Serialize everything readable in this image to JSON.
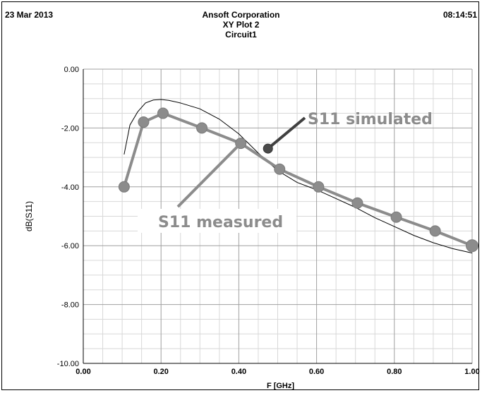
{
  "header": {
    "date": "23 Mar 2013",
    "company": "Ansoft Corporation",
    "plot_name": "XY Plot 2",
    "circuit": "Circuit1",
    "time": "08:14:51"
  },
  "chart_data": {
    "type": "line",
    "title": "XY Plot 2",
    "xlabel": "F [GHz]",
    "ylabel": "dB(S11)",
    "xlim": [
      0.0,
      1.0
    ],
    "ylim": [
      -10.0,
      0.0
    ],
    "grid": true,
    "x_ticks": [
      "0.00",
      "0.20",
      "0.40",
      "0.60",
      "0.80",
      "1.00"
    ],
    "y_ticks": [
      "0.00",
      "-2.00",
      "-4.00",
      "-6.00",
      "-8.00",
      "-10.00"
    ],
    "series": [
      {
        "name": "S11 simulated",
        "color": "#000000",
        "points": [
          [
            0.105,
            -2.9
          ],
          [
            0.12,
            -1.9
          ],
          [
            0.14,
            -1.45
          ],
          [
            0.16,
            -1.15
          ],
          [
            0.18,
            -1.05
          ],
          [
            0.2,
            -1.03
          ],
          [
            0.22,
            -1.06
          ],
          [
            0.25,
            -1.15
          ],
          [
            0.3,
            -1.35
          ],
          [
            0.35,
            -1.7
          ],
          [
            0.4,
            -2.2
          ],
          [
            0.45,
            -2.85
          ],
          [
            0.5,
            -3.45
          ],
          [
            0.55,
            -3.85
          ],
          [
            0.6,
            -4.1
          ],
          [
            0.65,
            -4.4
          ],
          [
            0.7,
            -4.7
          ],
          [
            0.75,
            -5.05
          ],
          [
            0.8,
            -5.35
          ],
          [
            0.85,
            -5.65
          ],
          [
            0.9,
            -5.9
          ],
          [
            0.95,
            -6.1
          ],
          [
            1.0,
            -6.25
          ]
        ]
      },
      {
        "name": "S11 measured",
        "color": "#8c8c8c",
        "points": [
          [
            0.105,
            -4.0
          ],
          [
            0.155,
            -1.8
          ],
          [
            0.205,
            -1.5
          ],
          [
            0.305,
            -2.0
          ],
          [
            0.405,
            -2.52
          ],
          [
            0.505,
            -3.4
          ],
          [
            0.605,
            -4.0
          ],
          [
            0.705,
            -4.55
          ],
          [
            0.805,
            -5.03
          ],
          [
            0.905,
            -5.5
          ],
          [
            1.0,
            -6.0
          ]
        ]
      }
    ],
    "annotations": [
      {
        "text": "S11 simulated",
        "anchor": [
          0.475,
          -2.7
        ]
      },
      {
        "text": "S11 measured",
        "anchor": [
          0.405,
          -2.52
        ]
      }
    ]
  }
}
